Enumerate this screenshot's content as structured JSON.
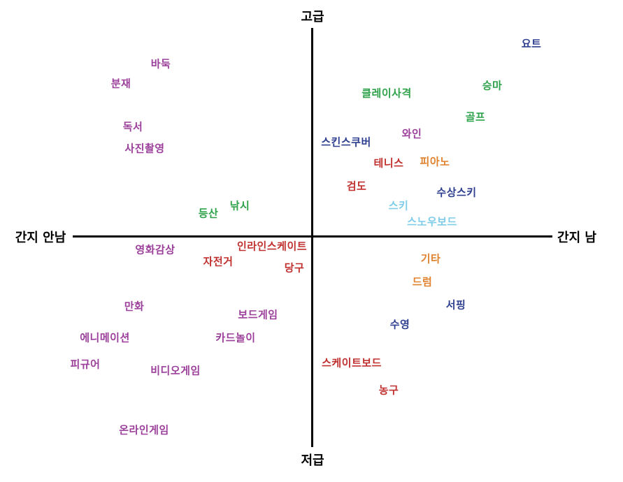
{
  "axes": {
    "top": "고급",
    "bottom": "저급",
    "left": "간지 안남",
    "right": "간지 남"
  },
  "colors": {
    "purple": "#9b3f9a",
    "green": "#2ea24a",
    "navy": "#2e3f8f",
    "red": "#c0302f",
    "orange": "#e0822e",
    "lightblue": "#7fcde8"
  },
  "items": [
    {
      "label": "요트",
      "color": "navy"
    },
    {
      "label": "바둑",
      "color": "purple"
    },
    {
      "label": "분재",
      "color": "purple"
    },
    {
      "label": "클레이사격",
      "color": "green"
    },
    {
      "label": "승마",
      "color": "green"
    },
    {
      "label": "골프",
      "color": "green"
    },
    {
      "label": "독서",
      "color": "purple"
    },
    {
      "label": "와인",
      "color": "purple"
    },
    {
      "label": "스킨스쿠버",
      "color": "navy"
    },
    {
      "label": "사진촬영",
      "color": "purple"
    },
    {
      "label": "테니스",
      "color": "red"
    },
    {
      "label": "피아노",
      "color": "orange"
    },
    {
      "label": "검도",
      "color": "red"
    },
    {
      "label": "수상스키",
      "color": "navy"
    },
    {
      "label": "낚시",
      "color": "green"
    },
    {
      "label": "스키",
      "color": "lightblue"
    },
    {
      "label": "등산",
      "color": "green"
    },
    {
      "label": "스노우보드",
      "color": "lightblue"
    },
    {
      "label": "인라인스케이트",
      "color": "red"
    },
    {
      "label": "영화감상",
      "color": "purple"
    },
    {
      "label": "기타",
      "color": "orange"
    },
    {
      "label": "자전거",
      "color": "red"
    },
    {
      "label": "당구",
      "color": "red"
    },
    {
      "label": "드럼",
      "color": "orange"
    },
    {
      "label": "만화",
      "color": "purple"
    },
    {
      "label": "서핑",
      "color": "navy"
    },
    {
      "label": "보드게임",
      "color": "purple"
    },
    {
      "label": "수영",
      "color": "navy"
    },
    {
      "label": "에니메이션",
      "color": "purple"
    },
    {
      "label": "카드놀이",
      "color": "purple"
    },
    {
      "label": "피규어",
      "color": "purple"
    },
    {
      "label": "스케이트보드",
      "color": "red"
    },
    {
      "label": "비디오게임",
      "color": "purple"
    },
    {
      "label": "농구",
      "color": "red"
    },
    {
      "label": "온라인게임",
      "color": "purple"
    }
  ]
}
